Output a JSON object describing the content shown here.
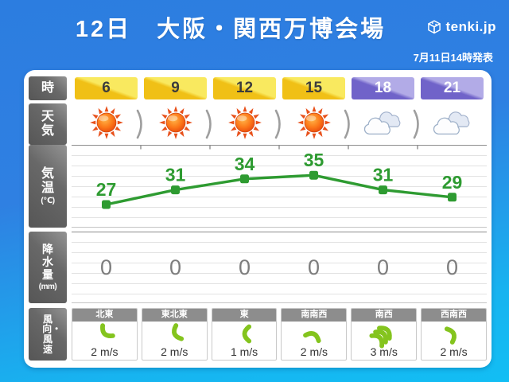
{
  "header": {
    "title": "12日　大阪・関西万博会場",
    "logo_text": "tenki.jp",
    "issued": "7月11日14時発表"
  },
  "row_labels": {
    "hour": "時",
    "weather": "天気",
    "temperature": "気温",
    "temperature_unit": "(℃)",
    "precipitation": "降水量",
    "precipitation_unit": "(mm)",
    "wind": "風向・風速"
  },
  "colors": {
    "bg_top": "#2c7de0",
    "bg_bottom": "#12bef4",
    "badge_day_dark": "#f0c016",
    "badge_day_light": "#f9e95f",
    "badge_night_dark": "#7063c9",
    "badge_night_light": "#b2abe7",
    "temp_green": "#2e9b31",
    "wind_green": "#84c41e",
    "label_gray": "#686868"
  },
  "chart_data": {
    "type": "line",
    "title": "気温(℃)",
    "categories": [
      "6",
      "9",
      "12",
      "15",
      "18",
      "21"
    ],
    "values": [
      27,
      31,
      34,
      35,
      31,
      29
    ],
    "xlabel": "時",
    "ylabel": "気温(℃)",
    "series_color": "#2e9b31",
    "grid": true,
    "legend": false
  },
  "columns": [
    {
      "hour": "6",
      "period": "day",
      "weather": "sunny",
      "temp": 27,
      "precip": "0",
      "wind": {
        "dir": "北東",
        "speed": "2 m/s",
        "arrow_deg": 135,
        "chevrons": 1
      }
    },
    {
      "hour": "9",
      "period": "day",
      "weather": "sunny",
      "temp": 31,
      "precip": "0",
      "wind": {
        "dir": "東北東",
        "speed": "2 m/s",
        "arrow_deg": 157.5,
        "chevrons": 1
      }
    },
    {
      "hour": "12",
      "period": "day",
      "weather": "sunny",
      "temp": 34,
      "precip": "0",
      "wind": {
        "dir": "東",
        "speed": "1 m/s",
        "arrow_deg": 180,
        "chevrons": 1
      }
    },
    {
      "hour": "15",
      "period": "day",
      "weather": "sunny",
      "temp": 35,
      "precip": "0",
      "wind": {
        "dir": "南南西",
        "speed": "2 m/s",
        "arrow_deg": -67.5,
        "chevrons": 1
      }
    },
    {
      "hour": "18",
      "period": "night",
      "weather": "cloudy",
      "temp": 31,
      "precip": "0",
      "wind": {
        "dir": "南西",
        "speed": "3 m/s",
        "arrow_deg": -45,
        "chevrons": 3
      }
    },
    {
      "hour": "21",
      "period": "night",
      "weather": "cloudy",
      "temp": 29,
      "precip": "0",
      "wind": {
        "dir": "西南西",
        "speed": "2 m/s",
        "arrow_deg": -22.5,
        "chevrons": 1
      }
    }
  ]
}
